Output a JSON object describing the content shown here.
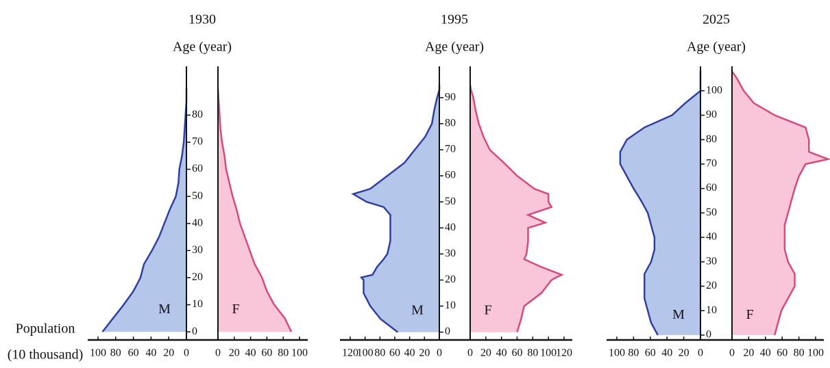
{
  "chart_data": [
    {
      "type": "pyramid",
      "title": "1930",
      "ylabel": "Age (year)",
      "xlabel": [
        "Population",
        "(10 thousand)"
      ],
      "x": [
        0,
        5,
        10,
        15,
        20,
        25,
        30,
        35,
        40,
        45,
        50,
        55,
        60,
        65,
        70,
        75,
        80,
        85,
        90
      ],
      "series": [
        {
          "name": "M",
          "color": "#2f3f9e",
          "fill": "#b4c6ea",
          "values": [
            95,
            83,
            71,
            60,
            52,
            48,
            39,
            31,
            25,
            19,
            12,
            9,
            8,
            5,
            3,
            2,
            1,
            0,
            0
          ]
        },
        {
          "name": "F",
          "color": "#d9497a",
          "fill": "#f8c6d8",
          "values": [
            90,
            82,
            69,
            60,
            54,
            45,
            39,
            33,
            27,
            23,
            18,
            14,
            10,
            8,
            5,
            3,
            2,
            1,
            0
          ]
        }
      ],
      "xlim": [
        0,
        100
      ],
      "xticks": [
        0,
        20,
        40,
        60,
        80,
        100
      ],
      "ylim": [
        -3,
        98
      ],
      "yticks": [
        0,
        10,
        20,
        30,
        40,
        50,
        60,
        70,
        80
      ]
    },
    {
      "type": "pyramid",
      "title": "1995",
      "ylabel": "Age (year)",
      "x": [
        0,
        5,
        10,
        15,
        20,
        21,
        22,
        25,
        28,
        30,
        35,
        40,
        42,
        45,
        48,
        50,
        53,
        55,
        60,
        65,
        70,
        75,
        80,
        85,
        90,
        93,
        95
      ],
      "series": [
        {
          "name": "M",
          "color": "#2f3f9e",
          "fill": "#b4c6ea",
          "values": [
            56,
            79,
            93,
            102,
            102,
            105,
            90,
            84,
            75,
            70,
            66,
            66,
            66,
            66,
            75,
            98,
            116,
            93,
            70,
            47,
            33,
            19,
            10,
            7,
            3,
            0,
            0
          ]
        },
        {
          "name": "F",
          "color": "#d9497a",
          "fill": "#f8c6d8",
          "values": [
            60,
            65,
            69,
            91,
            104,
            110,
            117,
            91,
            69,
            72,
            74,
            74,
            96,
            74,
            104,
            100,
            100,
            82,
            60,
            43,
            25,
            17,
            11,
            7,
            4,
            1,
            0
          ]
        }
      ],
      "xlim": [
        0,
        120
      ],
      "xticks": [
        0,
        20,
        40,
        60,
        80,
        100,
        120
      ],
      "ylim": [
        -3,
        102
      ],
      "yticks": [
        0,
        10,
        20,
        30,
        40,
        50,
        60,
        70,
        80,
        90
      ]
    },
    {
      "type": "pyramid",
      "title": "2025",
      "ylabel": "Age (year)",
      "x": [
        0,
        5,
        10,
        15,
        20,
        25,
        30,
        35,
        40,
        45,
        50,
        55,
        60,
        65,
        70,
        72,
        75,
        80,
        85,
        90,
        95,
        100,
        105,
        108
      ],
      "series": [
        {
          "name": "M",
          "color": "#2f3f9e",
          "fill": "#b4c6ea",
          "values": [
            51,
            59,
            63,
            67,
            67,
            67,
            59,
            55,
            55,
            59,
            63,
            71,
            80,
            88,
            96,
            96,
            96,
            88,
            67,
            34,
            18,
            0,
            0,
            0
          ]
        },
        {
          "name": "F",
          "color": "#d9497a",
          "fill": "#f8c6d8",
          "values": [
            51,
            55,
            59,
            67,
            75,
            75,
            67,
            63,
            63,
            63,
            67,
            71,
            75,
            80,
            88,
            115,
            92,
            92,
            88,
            51,
            26,
            14,
            6,
            0
          ]
        }
      ],
      "xlim": [
        0,
        100
      ],
      "xticks": [
        0,
        20,
        40,
        60,
        80,
        100
      ],
      "ylim": [
        -2,
        110
      ],
      "yticks": [
        0,
        10,
        20,
        30,
        40,
        50,
        60,
        70,
        80,
        90,
        100
      ]
    }
  ]
}
